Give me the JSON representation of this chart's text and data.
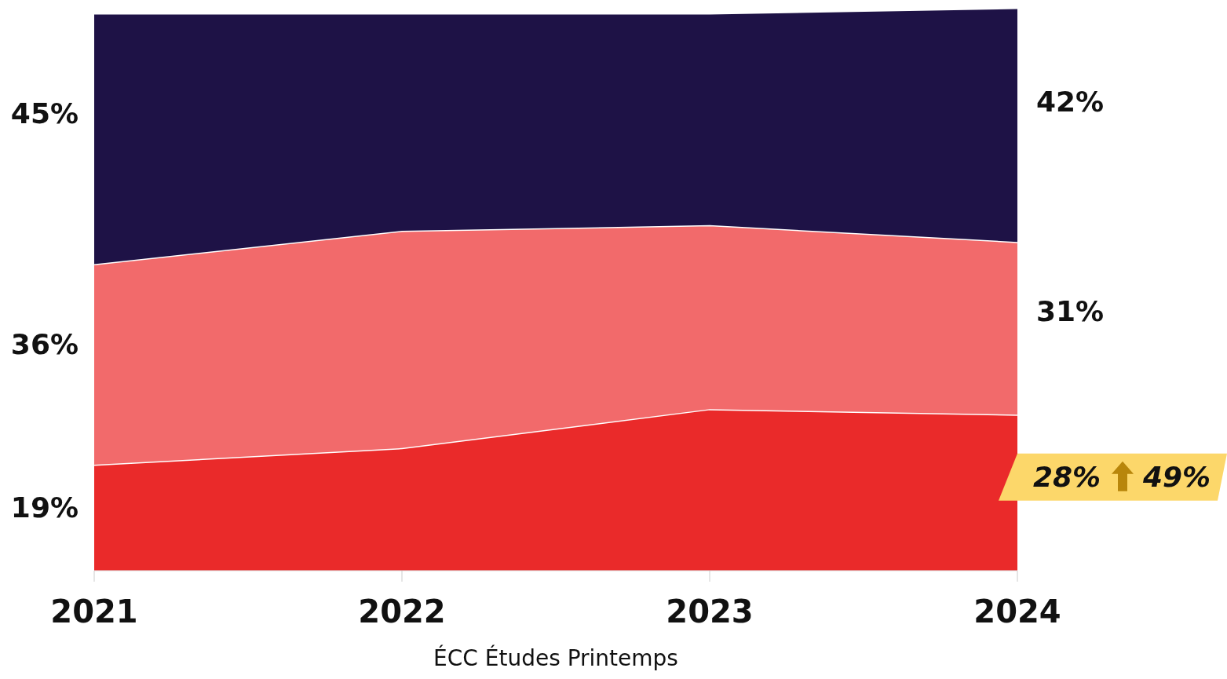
{
  "chart_data": {
    "type": "area",
    "stacked": true,
    "categories": [
      "2021",
      "2022",
      "2023",
      "2024"
    ],
    "xlabel": "ÉCC Études Printemps",
    "annotations": [
      "49%"
    ],
    "series": [
      {
        "color": "#ea2a2a",
        "values": [
          19,
          22,
          29,
          28
        ],
        "value_labels": [
          "19%",
          null,
          null,
          "28%"
        ]
      },
      {
        "color": "#f26a6b",
        "values": [
          36,
          39,
          33,
          31
        ],
        "value_labels": [
          "36%",
          null,
          null,
          "31%"
        ]
      },
      {
        "color": "#1e1246",
        "values": [
          45,
          39,
          38,
          42
        ],
        "value_labels": [
          "45%",
          null,
          null,
          "42%"
        ]
      }
    ]
  }
}
